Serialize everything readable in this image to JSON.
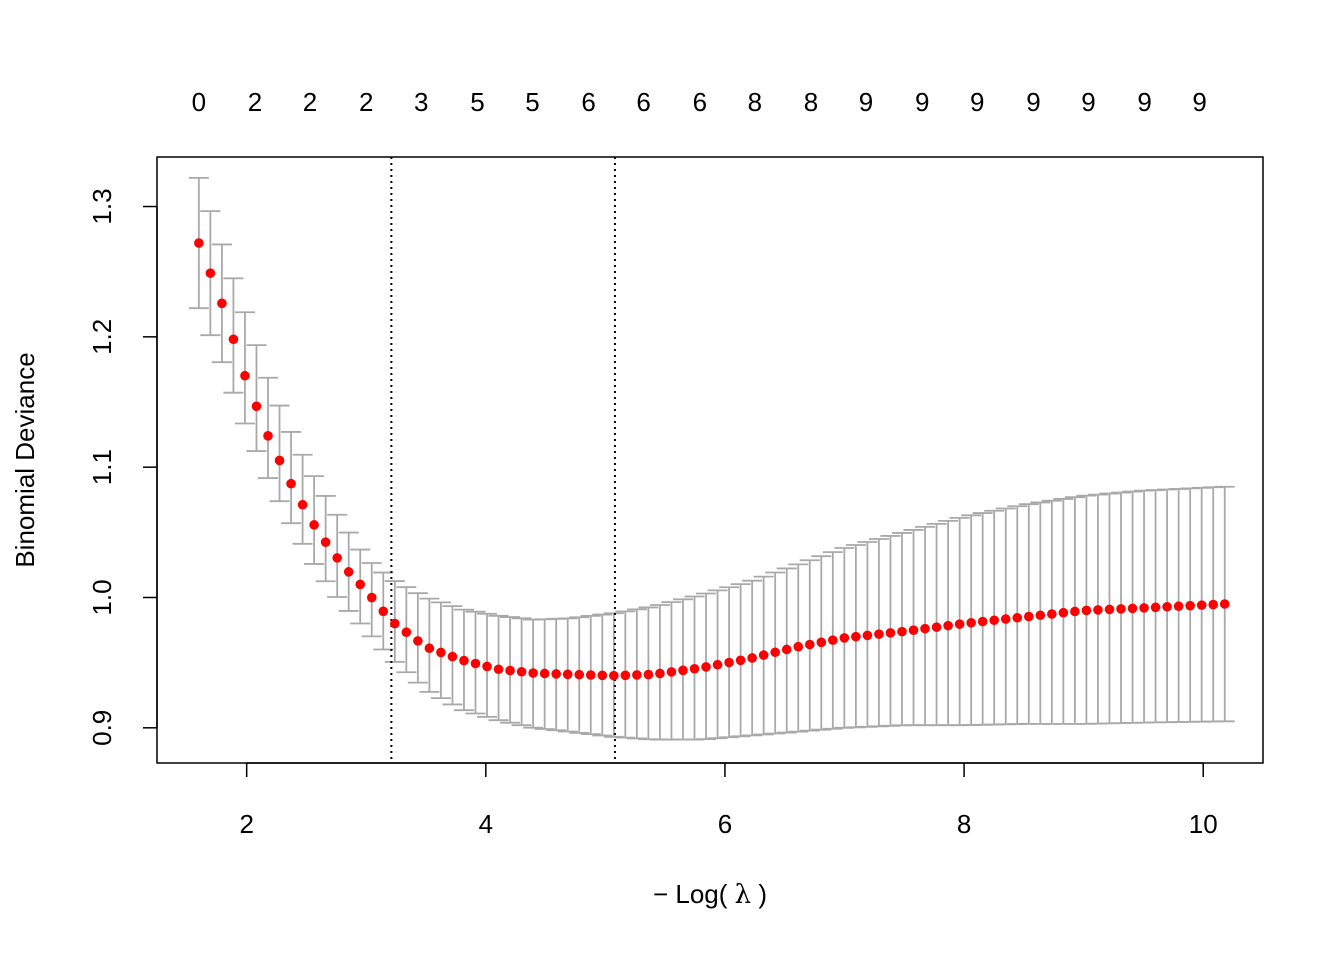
{
  "chart_data": {
    "type": "scatter",
    "xlabel_prefix": "−",
    "xlabel_main": "Log(",
    "xlabel_lambda": "λ",
    "xlabel_close": ")",
    "ylabel": "Binomial Deviance",
    "xlim": [
      1.25,
      10.5
    ],
    "ylim": [
      0.873,
      1.338
    ],
    "x_ticks": [
      "2",
      "4",
      "6",
      "8",
      "10"
    ],
    "y_ticks": [
      "0.9",
      "1.0",
      "1.1",
      "1.2",
      "1.3"
    ],
    "x_range": [
      1.6,
      10.18
    ],
    "n_points": 90,
    "top_axis": {
      "labels": [
        "0",
        "2",
        "2",
        "2",
        "3",
        "5",
        "5",
        "6",
        "6",
        "6",
        "8",
        "8",
        "9",
        "9",
        "9",
        "9",
        "9",
        "9",
        "9"
      ],
      "x_positions": [
        1.6,
        2.07,
        2.53,
        3.0,
        3.46,
        3.93,
        4.39,
        4.86,
        5.32,
        5.79,
        6.25,
        6.72,
        7.18,
        7.65,
        8.11,
        8.58,
        9.04,
        9.51,
        9.97
      ]
    },
    "vlines": [
      3.21,
      5.08
    ],
    "mean_curve": {
      "x": [
        1.6,
        1.8,
        2.0,
        2.2,
        2.4,
        2.6,
        2.8,
        3.0,
        3.21,
        3.5,
        3.8,
        4.1,
        4.4,
        4.7,
        5.08,
        5.4,
        5.8,
        6.2,
        6.6,
        7.0,
        7.5,
        8.0,
        8.5,
        9.0,
        9.5,
        10.18
      ],
      "y": [
        1.272,
        1.224,
        1.166,
        1.119,
        1.082,
        1.05,
        1.025,
        1.005,
        0.982,
        0.962,
        0.952,
        0.945,
        0.942,
        0.941,
        0.94,
        0.941,
        0.946,
        0.953,
        0.962,
        0.969,
        0.974,
        0.98,
        0.985,
        0.99,
        0.992,
        0.995
      ]
    },
    "upper_curve": {
      "x": [
        1.6,
        1.8,
        2.0,
        2.2,
        2.4,
        2.6,
        2.8,
        3.0,
        3.21,
        3.5,
        3.8,
        4.1,
        4.4,
        4.7,
        5.08,
        5.4,
        5.8,
        6.2,
        6.6,
        7.0,
        7.5,
        8.0,
        8.5,
        9.0,
        9.5,
        10.18
      ],
      "y": [
        1.322,
        1.269,
        1.215,
        1.163,
        1.121,
        1.087,
        1.057,
        1.03,
        1.014,
        1.0,
        0.991,
        0.986,
        0.983,
        0.984,
        0.988,
        0.993,
        1.002,
        1.012,
        1.025,
        1.038,
        1.05,
        1.062,
        1.071,
        1.078,
        1.082,
        1.085
      ]
    },
    "lower_curve": {
      "x": [
        1.6,
        1.8,
        2.0,
        2.2,
        2.4,
        2.6,
        2.8,
        3.0,
        3.21,
        3.5,
        3.8,
        4.1,
        4.4,
        4.7,
        5.08,
        5.4,
        5.8,
        6.2,
        6.6,
        7.0,
        7.5,
        8.0,
        8.5,
        9.0,
        9.5,
        10.18
      ],
      "y": [
        1.222,
        1.179,
        1.13,
        1.087,
        1.052,
        1.02,
        0.995,
        0.975,
        0.953,
        0.929,
        0.914,
        0.906,
        0.9,
        0.897,
        0.893,
        0.891,
        0.891,
        0.894,
        0.897,
        0.9,
        0.902,
        0.902,
        0.903,
        0.903,
        0.904,
        0.905
      ]
    },
    "point_color": "#ff0000",
    "errorbar_color": "#a9a9a9",
    "grid": false,
    "legend": "none"
  }
}
